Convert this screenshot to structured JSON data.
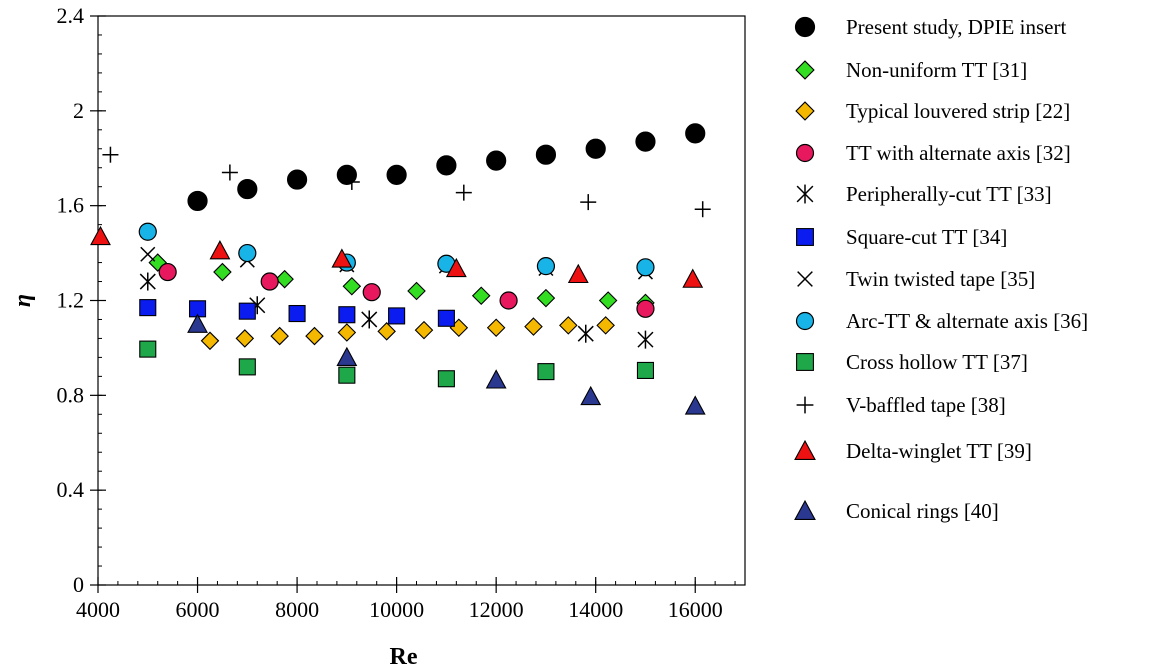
{
  "chart_data": {
    "type": "scatter",
    "xlabel": "Re",
    "ylabel": "η",
    "xlim": [
      4000,
      17000
    ],
    "ylim": [
      0,
      2.4
    ],
    "xticks": [
      4000,
      6000,
      8000,
      10000,
      12000,
      14000,
      16000
    ],
    "xtick_labels": [
      "4000",
      "6000",
      "8000",
      "10000",
      "12000",
      "14000",
      "16000"
    ],
    "yticks": [
      0,
      0.4,
      0.8,
      1.2,
      1.6,
      2.0,
      2.4
    ],
    "ytick_labels": [
      "0",
      "0.4",
      "0.8",
      "1.2",
      "1.6",
      "2",
      "2.4"
    ],
    "grid": false,
    "legend_position": "right",
    "series": [
      {
        "name": "Present study, DPIE insert",
        "marker": "circle",
        "color": "#000000",
        "size": "large",
        "x": [
          6000,
          7000,
          8000,
          9000,
          10000,
          11000,
          12000,
          13000,
          14000,
          15000,
          16000
        ],
        "y": [
          1.62,
          1.67,
          1.71,
          1.73,
          1.73,
          1.77,
          1.79,
          1.815,
          1.84,
          1.87,
          1.905
        ]
      },
      {
        "name": "Non-uniform TT [31]",
        "marker": "diamond",
        "color": "#33dd22",
        "x": [
          5200,
          6500,
          7750,
          9100,
          10400,
          11700,
          13000,
          14250,
          15000
        ],
        "y": [
          1.36,
          1.32,
          1.29,
          1.26,
          1.24,
          1.22,
          1.21,
          1.2,
          1.19
        ]
      },
      {
        "name": "Typical louvered strip [22]",
        "marker": "diamond",
        "color": "#f5b800",
        "x": [
          6250,
          6950,
          7650,
          8350,
          9000,
          9800,
          10550,
          11250,
          12000,
          12750,
          13450,
          14200
        ],
        "y": [
          1.03,
          1.04,
          1.05,
          1.05,
          1.065,
          1.07,
          1.075,
          1.085,
          1.085,
          1.09,
          1.095,
          1.095
        ]
      },
      {
        "name": "TT with alternate axis [32]",
        "marker": "circle",
        "color": "#e8185e",
        "x": [
          5400,
          7450,
          9500,
          12250,
          15000
        ],
        "y": [
          1.32,
          1.28,
          1.235,
          1.2,
          1.165
        ]
      },
      {
        "name": "Peripherally-cut  TT [33]",
        "marker": "asterisk",
        "color": "#000000",
        "x": [
          5000,
          7200,
          9450,
          13800,
          15000
        ],
        "y": [
          1.28,
          1.18,
          1.12,
          1.06,
          1.035
        ]
      },
      {
        "name": "Square-cut TT [34]",
        "marker": "square",
        "color": "#0a1cf0",
        "x": [
          5000,
          6000,
          7000,
          8000,
          9000,
          10000,
          11000
        ],
        "y": [
          1.17,
          1.165,
          1.155,
          1.145,
          1.14,
          1.135,
          1.125
        ]
      },
      {
        "name": "Twin twisted tape [35]",
        "marker": "x",
        "color": "#000000",
        "x": [
          5000,
          7000,
          9000,
          11000,
          13000,
          15000
        ],
        "y": [
          1.395,
          1.37,
          1.35,
          1.345,
          1.335,
          1.32
        ]
      },
      {
        "name": "Arc-TT & alternate axis [36]",
        "marker": "circle",
        "color": "#18b4e8",
        "x": [
          5000,
          7000,
          9000,
          11000,
          13000,
          15000
        ],
        "y": [
          1.49,
          1.4,
          1.36,
          1.355,
          1.345,
          1.34
        ]
      },
      {
        "name": "Cross hollow TT [37]",
        "marker": "square",
        "color": "#1fa84a",
        "x": [
          5000,
          7000,
          9000,
          11000,
          13000,
          15000
        ],
        "y": [
          0.995,
          0.92,
          0.885,
          0.87,
          0.9,
          0.905
        ]
      },
      {
        "name": "V-baffled tape [38]",
        "marker": "plus",
        "color": "#000000",
        "x": [
          4250,
          6650,
          9100,
          11350,
          13850,
          16150
        ],
        "y": [
          1.815,
          1.74,
          1.7,
          1.655,
          1.615,
          1.585
        ]
      },
      {
        "name": "Delta-winglet TT [39]",
        "marker": "triangle",
        "color": "#ee1111",
        "x": [
          4050,
          6450,
          8900,
          11200,
          13650,
          15950
        ],
        "y": [
          1.47,
          1.41,
          1.375,
          1.335,
          1.31,
          1.29
        ]
      },
      {
        "name": "Conical rings [40]",
        "marker": "triangle",
        "color": "#2a3890",
        "x": [
          6000,
          9000,
          12000,
          13900,
          16000
        ],
        "y": [
          1.1,
          0.96,
          0.865,
          0.795,
          0.755
        ]
      }
    ]
  }
}
